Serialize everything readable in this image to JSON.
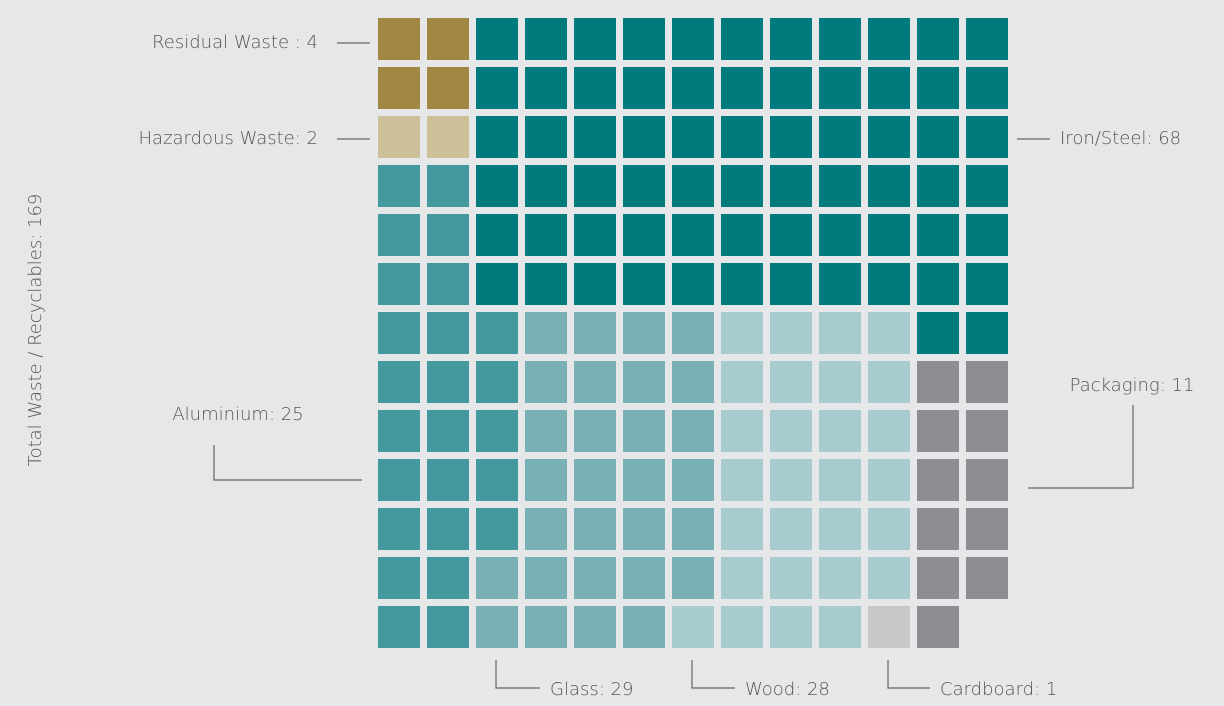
{
  "chart_data": {
    "type": "waffle",
    "y_label": "Total Waste / Recyclables: 169",
    "series": [
      {
        "name": "Residual Waste",
        "label": "Residual Waste : 4",
        "color": "#a08744",
        "values": [
          4
        ]
      },
      {
        "name": "Hazardous Waste",
        "label": "Hazardous Waste: 2",
        "color": "#cdbf98",
        "values": [
          2
        ]
      },
      {
        "name": "Aluminium",
        "label": "Aluminium: 25",
        "color": "#44999e",
        "values": [
          25
        ]
      },
      {
        "name": "Glass",
        "label": "Glass: 29",
        "color": "#78b0b5",
        "values": [
          29
        ]
      },
      {
        "name": "Wood",
        "label": "Wood: 28",
        "color": "#a8cbd0",
        "values": [
          28
        ]
      },
      {
        "name": "Cardboard",
        "label": "Cardboard: 1",
        "color": "#c8c8c8",
        "values": [
          1
        ]
      },
      {
        "name": "Packaging",
        "label": "Packaging: 11",
        "color": "#8e8e92",
        "values": [
          11
        ]
      },
      {
        "name": "Iron/Steel",
        "label": "Iron/Steel: 68",
        "color": "#007a7c",
        "values": [
          68
        ]
      }
    ]
  }
}
